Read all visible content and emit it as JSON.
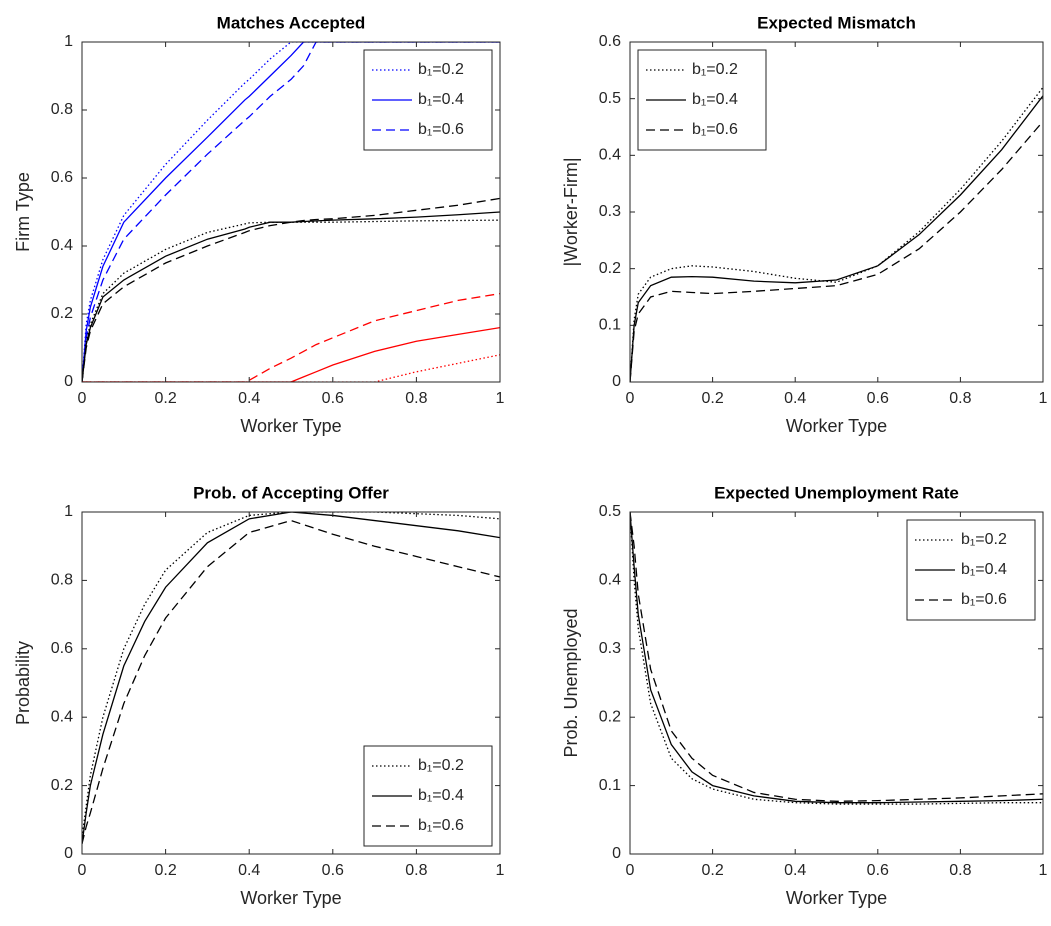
{
  "chart_data": [
    {
      "type": "line",
      "title": "Matches Accepted",
      "xlabel": "Worker Type",
      "ylabel": "Firm Type",
      "x": [
        0,
        0.01,
        0.02,
        0.05,
        0.1,
        0.2,
        0.3,
        0.39,
        0.4,
        0.45,
        0.5,
        0.53,
        0.56,
        0.6,
        0.7,
        0.8,
        0.9,
        1
      ],
      "xlim": [
        0,
        1
      ],
      "xticks": [
        0,
        0.2,
        0.4,
        0.6,
        0.8,
        1
      ],
      "ylim": [
        0,
        1
      ],
      "yticks": [
        0,
        0.2,
        0.4,
        0.6,
        0.8,
        1
      ],
      "legend": "upper right",
      "series": [
        {
          "name": "b₁=0.2",
          "color": "#0000ff",
          "dash": "dotted",
          "values": [
            0,
            0.17,
            0.24,
            0.36,
            0.49,
            0.64,
            0.77,
            0.88,
            0.89,
            0.95,
            1,
            1,
            1,
            1,
            1,
            1,
            1,
            1
          ]
        },
        {
          "name": "b₁=0.4",
          "color": "#0000ff",
          "dash": "solid",
          "values": [
            0,
            0.15,
            0.22,
            0.34,
            0.47,
            0.6,
            0.72,
            0.83,
            0.84,
            0.9,
            0.96,
            1,
            1,
            1,
            1,
            1,
            1,
            1
          ]
        },
        {
          "name": "b₁=0.6",
          "color": "#0000ff",
          "dash": "dashed",
          "values": [
            0,
            0.13,
            0.19,
            0.3,
            0.42,
            0.55,
            0.67,
            0.77,
            0.78,
            0.84,
            0.89,
            0.93,
            1,
            1,
            1,
            1,
            1,
            1
          ]
        },
        {
          "color": "#000000",
          "dash": "dotted",
          "values": [
            0,
            0.12,
            0.17,
            0.26,
            0.32,
            0.39,
            0.44,
            0.465,
            0.468,
            0.47,
            0.47,
            0.47,
            0.47,
            0.47,
            0.472,
            0.474,
            0.475,
            0.476
          ]
        },
        {
          "color": "#000000",
          "dash": "solid",
          "values": [
            0,
            0.11,
            0.16,
            0.25,
            0.3,
            0.37,
            0.42,
            0.45,
            0.455,
            0.47,
            0.47,
            0.472,
            0.474,
            0.476,
            0.48,
            0.485,
            0.492,
            0.5
          ]
        },
        {
          "color": "#000000",
          "dash": "dashed",
          "values": [
            0,
            0.1,
            0.15,
            0.23,
            0.28,
            0.35,
            0.4,
            0.44,
            0.445,
            0.46,
            0.47,
            0.475,
            0.478,
            0.48,
            0.49,
            0.505,
            0.52,
            0.54
          ]
        },
        {
          "color": "#ff0000",
          "dash": "dotted",
          "values": [
            0,
            0,
            0,
            0,
            0,
            0,
            0,
            0,
            0,
            0,
            0,
            0,
            0,
            0,
            0,
            0.03,
            0.055,
            0.08
          ]
        },
        {
          "color": "#ff0000",
          "dash": "solid",
          "values": [
            0,
            0,
            0,
            0,
            0,
            0,
            0,
            0,
            0,
            0,
            0,
            0.015,
            0.03,
            0.05,
            0.09,
            0.12,
            0.14,
            0.16
          ]
        },
        {
          "color": "#ff0000",
          "dash": "dashed",
          "values": [
            0,
            0,
            0,
            0,
            0,
            0,
            0,
            0,
            0.005,
            0.04,
            0.07,
            0.09,
            0.11,
            0.13,
            0.18,
            0.21,
            0.24,
            0.26
          ]
        }
      ]
    },
    {
      "type": "line",
      "title": "Expected Mismatch",
      "xlabel": "Worker Type",
      "ylabel": "|Worker-Firm|",
      "x": [
        0,
        0.01,
        0.02,
        0.05,
        0.1,
        0.15,
        0.2,
        0.3,
        0.4,
        0.5,
        0.6,
        0.7,
        0.8,
        0.9,
        1
      ],
      "xlim": [
        0,
        1
      ],
      "xticks": [
        0,
        0.2,
        0.4,
        0.6,
        0.8,
        1
      ],
      "ylim": [
        0,
        0.6
      ],
      "yticks": [
        0,
        0.1,
        0.2,
        0.3,
        0.4,
        0.5,
        0.6
      ],
      "legend": "upper left",
      "series": [
        {
          "name": "b₁=0.2",
          "color": "#000000",
          "dash": "dotted",
          "values": [
            0,
            0.11,
            0.155,
            0.185,
            0.2,
            0.205,
            0.203,
            0.195,
            0.183,
            0.176,
            0.205,
            0.265,
            0.34,
            0.425,
            0.52
          ]
        },
        {
          "name": "b₁=0.4",
          "color": "#000000",
          "dash": "solid",
          "values": [
            0,
            0.1,
            0.14,
            0.17,
            0.185,
            0.186,
            0.185,
            0.178,
            0.175,
            0.18,
            0.205,
            0.26,
            0.33,
            0.41,
            0.505
          ]
        },
        {
          "name": "b₁=0.6",
          "color": "#000000",
          "dash": "dashed",
          "values": [
            0,
            0.09,
            0.12,
            0.15,
            0.16,
            0.158,
            0.156,
            0.16,
            0.165,
            0.17,
            0.19,
            0.235,
            0.3,
            0.375,
            0.46
          ]
        }
      ]
    },
    {
      "type": "line",
      "title": "Prob. of Accepting Offer",
      "xlabel": "Worker Type",
      "ylabel": "Probability",
      "x": [
        0,
        0.01,
        0.02,
        0.05,
        0.1,
        0.15,
        0.2,
        0.3,
        0.4,
        0.5,
        0.6,
        0.7,
        0.8,
        0.9,
        1
      ],
      "xlim": [
        0,
        1
      ],
      "xticks": [
        0,
        0.2,
        0.4,
        0.6,
        0.8,
        1
      ],
      "ylim": [
        0,
        1
      ],
      "yticks": [
        0,
        0.2,
        0.4,
        0.6,
        0.8,
        1
      ],
      "legend": "lower right",
      "series": [
        {
          "name": "b₁=0.2",
          "color": "#000000",
          "dash": "dotted",
          "values": [
            0.05,
            0.14,
            0.23,
            0.4,
            0.6,
            0.73,
            0.83,
            0.94,
            0.99,
            1,
            1,
            1,
            0.995,
            0.99,
            0.98
          ]
        },
        {
          "name": "b₁=0.4",
          "color": "#000000",
          "dash": "solid",
          "values": [
            0.03,
            0.12,
            0.2,
            0.35,
            0.55,
            0.68,
            0.78,
            0.91,
            0.98,
            1,
            0.99,
            0.975,
            0.96,
            0.945,
            0.925
          ]
        },
        {
          "name": "b₁=0.6",
          "color": "#000000",
          "dash": "dashed",
          "values": [
            0.03,
            0.08,
            0.12,
            0.25,
            0.44,
            0.58,
            0.69,
            0.84,
            0.94,
            0.975,
            0.935,
            0.9,
            0.87,
            0.84,
            0.81
          ]
        }
      ]
    },
    {
      "type": "line",
      "title": "Expected Unemployment Rate",
      "xlabel": "Worker Type",
      "ylabel": "Prob. Unemployed",
      "x": [
        0,
        0.01,
        0.02,
        0.05,
        0.1,
        0.15,
        0.2,
        0.3,
        0.4,
        0.5,
        0.6,
        0.7,
        0.8,
        0.9,
        1
      ],
      "xlim": [
        0,
        1
      ],
      "xticks": [
        0,
        0.2,
        0.4,
        0.6,
        0.8,
        1
      ],
      "ylim": [
        0,
        0.5
      ],
      "yticks": [
        0,
        0.1,
        0.2,
        0.3,
        0.4,
        0.5
      ],
      "legend": "upper right",
      "series": [
        {
          "name": "b₁=0.2",
          "color": "#000000",
          "dash": "dotted",
          "values": [
            0.5,
            0.4,
            0.33,
            0.22,
            0.14,
            0.11,
            0.095,
            0.08,
            0.075,
            0.073,
            0.073,
            0.073,
            0.074,
            0.075,
            0.075
          ]
        },
        {
          "name": "b₁=0.4",
          "color": "#000000",
          "dash": "solid",
          "values": [
            0.5,
            0.42,
            0.35,
            0.24,
            0.16,
            0.12,
            0.1,
            0.085,
            0.077,
            0.075,
            0.075,
            0.076,
            0.077,
            0.078,
            0.08
          ]
        },
        {
          "name": "b₁=0.6",
          "color": "#000000",
          "dash": "dashed",
          "values": [
            0.5,
            0.45,
            0.38,
            0.27,
            0.18,
            0.14,
            0.115,
            0.09,
            0.08,
            0.077,
            0.078,
            0.08,
            0.082,
            0.085,
            0.088
          ]
        }
      ]
    }
  ]
}
